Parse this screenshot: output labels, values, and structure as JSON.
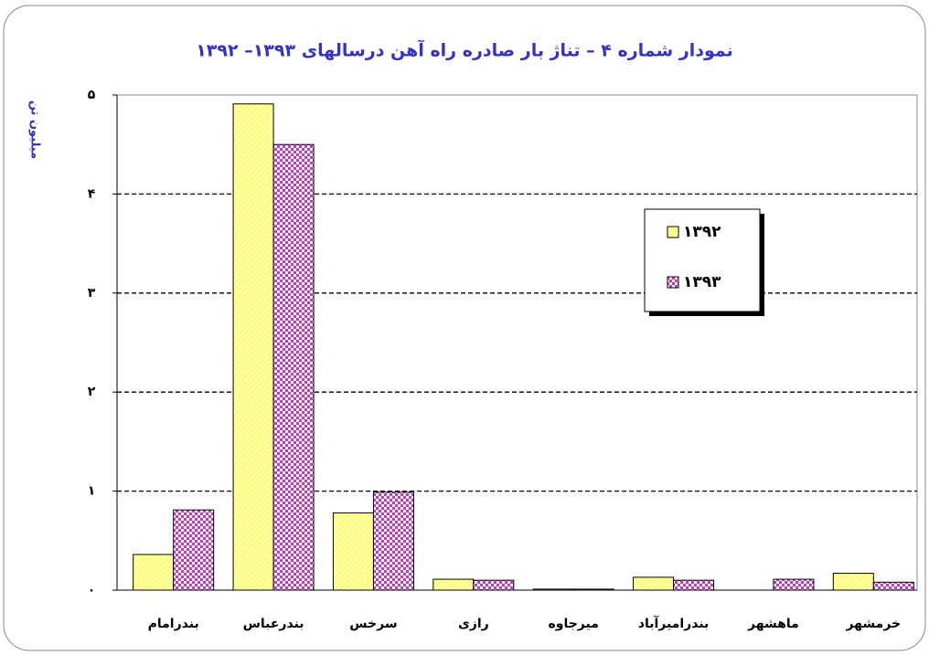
{
  "chart_data": {
    "type": "bar",
    "title": "نمودار شماره ۴ – تناژ بار صادره راه آهن درسالهای ۱۳۹۳– ۱۳۹۲",
    "y_label": "میلیون تن",
    "categories": [
      "بندرامام",
      "بندرعباس",
      "سرخس",
      "رازی",
      "میرجاوه",
      "بندرامیرآباد",
      "ماهشهر",
      "خرمشهر"
    ],
    "series": [
      {
        "name": "۱۳۹۲",
        "color": "#ffff66",
        "values": [
          0.36,
          4.91,
          0.78,
          0.11,
          0.01,
          0.13,
          0,
          0.17
        ]
      },
      {
        "name": "۱۳۹۳",
        "color": "#cc33cc",
        "values": [
          0.81,
          4.5,
          0.99,
          0.1,
          0.01,
          0.1,
          0.11,
          0.08
        ]
      }
    ],
    "ylim": [
      0,
      5
    ],
    "yticks": [
      {
        "value": 0,
        "label": "۰"
      },
      {
        "value": 1,
        "label": "۱"
      },
      {
        "value": 2,
        "label": "۲"
      },
      {
        "value": 3,
        "label": "۳"
      },
      {
        "value": 4,
        "label": "۴"
      },
      {
        "value": 5,
        "label": "۵"
      }
    ],
    "grid": true,
    "legend": "upper right"
  }
}
